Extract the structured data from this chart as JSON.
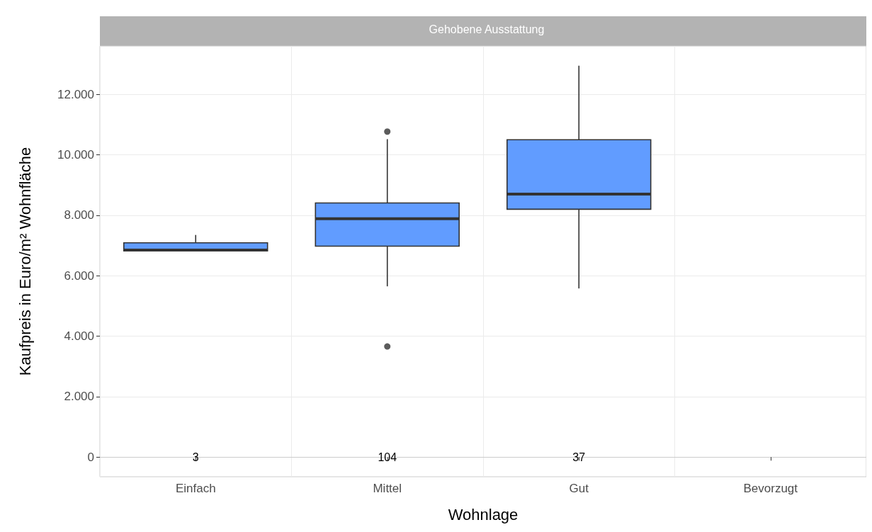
{
  "chart_data": {
    "type": "box",
    "title": "Gehobene Ausstattung",
    "xlabel": "Wohnlage",
    "ylabel": "Kaufpreis in Euro/m² Wohnfläche",
    "categories": [
      "Einfach",
      "Mittel",
      "Gut",
      "Bevorzugt"
    ],
    "boxes": [
      {
        "low": 6820,
        "q1": 6820,
        "median": 6850,
        "q3": 7090,
        "high": 7350
      },
      {
        "low": 5650,
        "q1": 6980,
        "median": 7890,
        "q3": 8410,
        "high": 10520,
        "outliers": [
          10770,
          3660
        ]
      },
      {
        "low": 5580,
        "q1": 8200,
        "median": 8700,
        "q3": 10500,
        "high": 12950
      },
      null
    ],
    "color": "#619cff",
    "ylim": [
      -650,
      13600
    ],
    "yticks": [
      0,
      {
        "value": 2000,
        "label": "2.000"
      },
      {
        "value": 4000,
        "label": "4.000"
      },
      {
        "value": 6000,
        "label": "6.000"
      },
      {
        "value": 8000,
        "label": "8.000"
      },
      {
        "value": 10000,
        "label": "10.000"
      },
      {
        "value": 12000,
        "label": "12.000"
      }
    ],
    "annotations": [
      "3",
      "104",
      "37"
    ],
    "grid": true
  }
}
